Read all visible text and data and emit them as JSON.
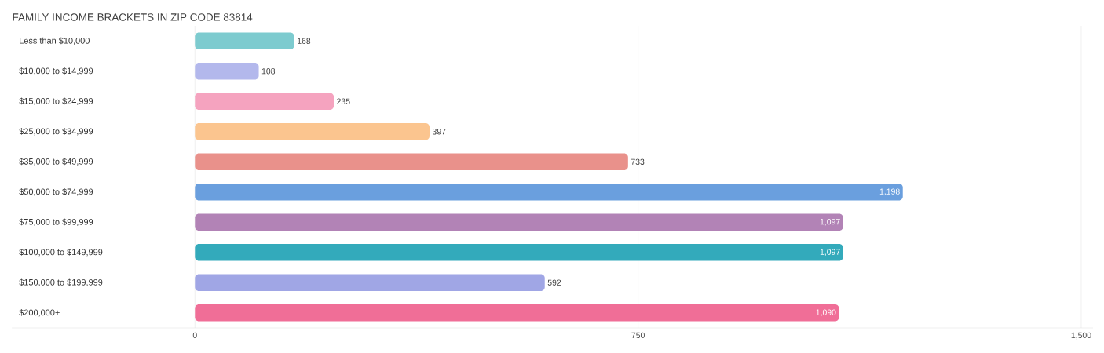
{
  "chart_data": {
    "type": "bar",
    "orientation": "horizontal",
    "title": "FAMILY INCOME BRACKETS IN ZIP CODE 83814",
    "categories": [
      "Less than $10,000",
      "$10,000 to $14,999",
      "$15,000 to $24,999",
      "$25,000 to $34,999",
      "$35,000 to $49,999",
      "$50,000 to $74,999",
      "$75,000 to $99,999",
      "$100,000 to $149,999",
      "$150,000 to $199,999",
      "$200,000+"
    ],
    "values": [
      168,
      108,
      235,
      397,
      733,
      1198,
      1097,
      1097,
      592,
      1090
    ],
    "value_labels": [
      "168",
      "108",
      "235",
      "397",
      "733",
      "1,198",
      "1,097",
      "1,097",
      "592",
      "1,090"
    ],
    "colors": [
      "#7dcbcf",
      "#b3b8ec",
      "#f5a3bf",
      "#fbc58f",
      "#e9918b",
      "#6a9fde",
      "#b283b6",
      "#33aabb",
      "#a0a6e5",
      "#f06e97"
    ],
    "xlim": [
      -310,
      1520
    ],
    "xticks": [
      0,
      750,
      {
        "value": 1500,
        "label": "1,500"
      }
    ],
    "grid": "x"
  }
}
